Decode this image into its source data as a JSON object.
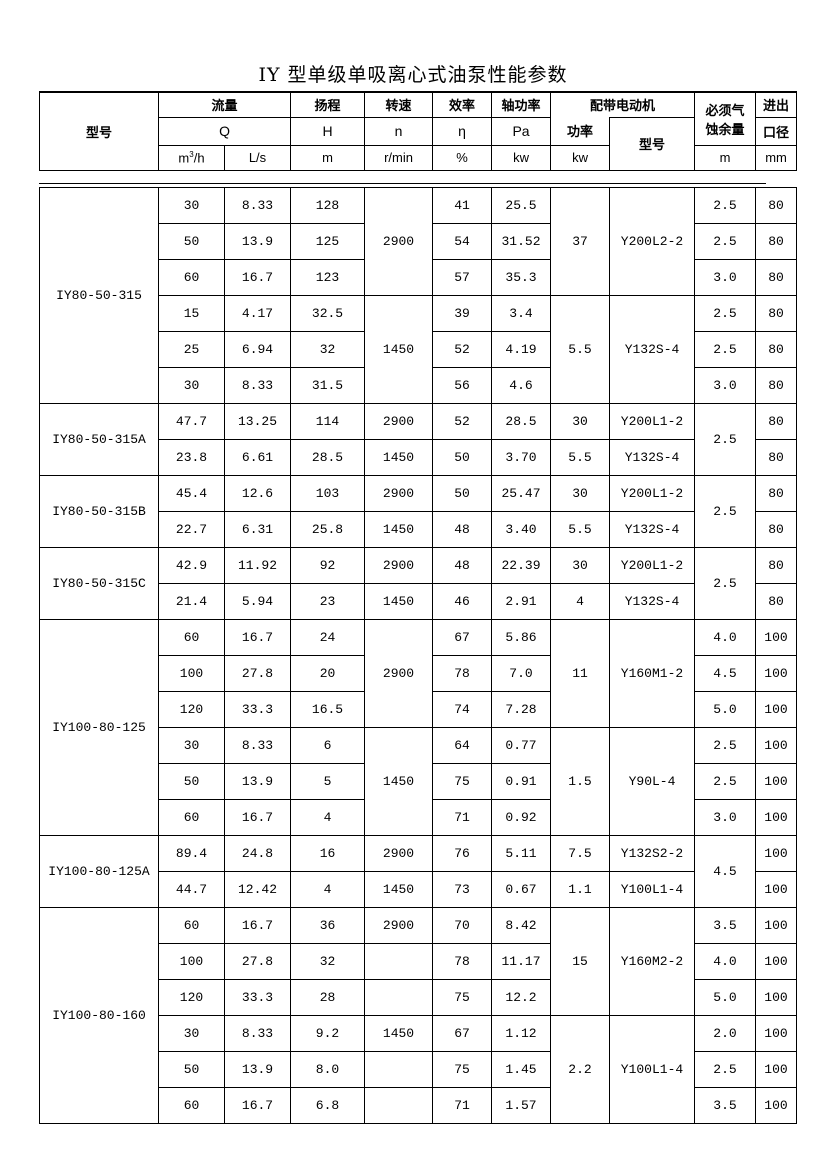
{
  "title": "IY 型单级单吸离心式油泵性能参数",
  "header": {
    "model": "型号",
    "flow": "流量",
    "flow_sym": "Q",
    "flow_unit1_base": "m",
    "flow_unit1_sup": "3",
    "flow_unit1_tail": "/h",
    "flow_unit2": "L/s",
    "head": "扬程",
    "head_sym": "H",
    "head_unit": "m",
    "speed": "转速",
    "speed_sym": "n",
    "speed_unit": "r/min",
    "eff": "效率",
    "eff_sym": "η",
    "eff_unit": "%",
    "shaft": "轴功率",
    "shaft_sym": "Pa",
    "shaft_unit": "kw",
    "motor": "配带电动机",
    "motor_power": "功率",
    "motor_power_unit": "kw",
    "motor_model": "型号",
    "npsh1": "必须气",
    "npsh2": "蚀余量",
    "npsh_unit": "m",
    "dia1": "进出",
    "dia2": "口径",
    "dia_unit": "mm"
  },
  "groups": [
    {
      "model": "IY80-50-315",
      "rows": [
        [
          "30",
          "8.33",
          "128",
          "2900",
          "41",
          "25.5",
          "37",
          "Y200L2-2",
          "2.5",
          "80"
        ],
        [
          "50",
          "13.9",
          "125",
          null,
          "54",
          "31.52",
          null,
          null,
          "2.5",
          "80"
        ],
        [
          "60",
          "16.7",
          "123",
          null,
          "57",
          "35.3",
          null,
          null,
          "3.0",
          "80"
        ],
        [
          "15",
          "4.17",
          "32.5",
          "1450",
          "39",
          "3.4",
          "5.5",
          "Y132S-4",
          "2.5",
          "80"
        ],
        [
          "25",
          "6.94",
          "32",
          null,
          "52",
          "4.19",
          null,
          null,
          "2.5",
          "80"
        ],
        [
          "30",
          "8.33",
          "31.5",
          null,
          "56",
          "4.6",
          null,
          null,
          "3.0",
          "80"
        ]
      ]
    },
    {
      "model": "IY80-50-315A",
      "rows": [
        [
          "47.7",
          "13.25",
          "114",
          "2900",
          "52",
          "28.5",
          "30",
          "Y200L1-2",
          "2.5",
          "80"
        ],
        [
          "23.8",
          "6.61",
          "28.5",
          "1450",
          "50",
          "3.70",
          "5.5",
          "Y132S-4",
          null,
          "80"
        ]
      ]
    },
    {
      "model": "IY80-50-315B",
      "rows": [
        [
          "45.4",
          "12.6",
          "103",
          "2900",
          "50",
          "25.47",
          "30",
          "Y200L1-2",
          "2.5",
          "80"
        ],
        [
          "22.7",
          "6.31",
          "25.8",
          "1450",
          "48",
          "3.40",
          "5.5",
          "Y132S-4",
          null,
          "80"
        ]
      ]
    },
    {
      "model": "IY80-50-315C",
      "rows": [
        [
          "42.9",
          "11.92",
          "92",
          "2900",
          "48",
          "22.39",
          "30",
          "Y200L1-2",
          "2.5",
          "80"
        ],
        [
          "21.4",
          "5.94",
          "23",
          "1450",
          "46",
          "2.91",
          "4",
          "Y132S-4",
          null,
          "80"
        ]
      ]
    },
    {
      "model": "IY100-80-125",
      "rows": [
        [
          "60",
          "16.7",
          "24",
          "2900",
          "67",
          "5.86",
          "11",
          "Y160M1-2",
          "4.0",
          "100"
        ],
        [
          "100",
          "27.8",
          "20",
          null,
          "78",
          "7.0",
          null,
          null,
          "4.5",
          "100"
        ],
        [
          "120",
          "33.3",
          "16.5",
          null,
          "74",
          "7.28",
          null,
          null,
          "5.0",
          "100"
        ],
        [
          "30",
          "8.33",
          "6",
          "1450",
          "64",
          "0.77",
          "1.5",
          "Y90L-4",
          "2.5",
          "100"
        ],
        [
          "50",
          "13.9",
          "5",
          null,
          "75",
          "0.91",
          null,
          null,
          "2.5",
          "100"
        ],
        [
          "60",
          "16.7",
          "4",
          null,
          "71",
          "0.92",
          null,
          null,
          "3.0",
          "100"
        ]
      ]
    },
    {
      "model": "IY100-80-125A",
      "rows": [
        [
          "89.4",
          "24.8",
          "16",
          "2900",
          "76",
          "5.11",
          "7.5",
          "Y132S2-2",
          "4.5",
          "100"
        ],
        [
          "44.7",
          "12.42",
          "4",
          "1450",
          "73",
          "0.67",
          "1.1",
          "Y100L1-4",
          null,
          "100"
        ]
      ]
    },
    {
      "model": "IY100-80-160",
      "rows": [
        [
          "60",
          "16.7",
          "36",
          "2900",
          "70",
          "8.42",
          "15",
          "Y160M2-2",
          "3.5",
          "100"
        ],
        [
          "100",
          "27.8",
          "32",
          "",
          "78",
          "11.17",
          null,
          null,
          "4.0",
          "100"
        ],
        [
          "120",
          "33.3",
          "28",
          "",
          "75",
          "12.2",
          null,
          null,
          "5.0",
          "100"
        ],
        [
          "30",
          "8.33",
          "9.2",
          "1450",
          "67",
          "1.12",
          "2.2",
          "Y100L1-4",
          "2.0",
          "100"
        ],
        [
          "50",
          "13.9",
          "8.0",
          "",
          "75",
          "1.45",
          null,
          null,
          "2.5",
          "100"
        ],
        [
          "60",
          "16.7",
          "6.8",
          "",
          "71",
          "1.57",
          null,
          null,
          "3.5",
          "100"
        ]
      ]
    }
  ]
}
